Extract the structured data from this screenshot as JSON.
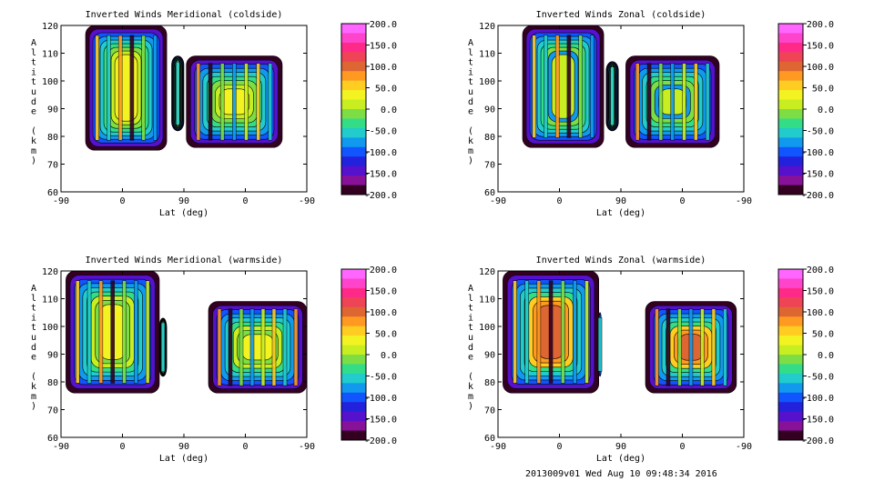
{
  "footer": "2013009v01 Wed Aug 10 09:48:34 2016",
  "colorbar": {
    "labels": [
      "200.0",
      "150.0",
      "100.0",
      "50.0",
      "0.0",
      "-50.0",
      "-100.0",
      "-150.0",
      "-200.0"
    ],
    "colors": [
      "#ff66ff",
      "#ff44cc",
      "#ff2a88",
      "#ee4455",
      "#dd6633",
      "#ff9922",
      "#ffcc22",
      "#f3f322",
      "#c8ee22",
      "#7ddd44",
      "#33dd88",
      "#22cccc",
      "#1199ee",
      "#1155ff",
      "#2222dd",
      "#5511cc",
      "#881199",
      "#330022"
    ]
  },
  "chart_data": [
    {
      "type": "heatmap",
      "title": "Inverted Winds Meridional (coldside)",
      "xlabel": "Lat (deg)",
      "ylabel": "Altitude (km)",
      "xticklabels": [
        "-90",
        "0",
        "90",
        "0",
        "-90"
      ],
      "yticklabels": [
        "60",
        "70",
        "80",
        "90",
        "100",
        "110",
        "120"
      ],
      "ylim": [
        60,
        120
      ],
      "value_range": [
        -200,
        200
      ]
    },
    {
      "type": "heatmap",
      "title": "Inverted Winds Zonal (coldside)",
      "xlabel": "Lat (deg)",
      "ylabel": "Altitude (km)",
      "xticklabels": [
        "-90",
        "0",
        "90",
        "0",
        "-90"
      ],
      "yticklabels": [
        "60",
        "70",
        "80",
        "90",
        "100",
        "110",
        "120"
      ],
      "ylim": [
        60,
        120
      ],
      "value_range": [
        -200,
        200
      ]
    },
    {
      "type": "heatmap",
      "title": "Inverted Winds Meridional (warmside)",
      "xlabel": "Lat (deg)",
      "ylabel": "Altitude (km)",
      "xticklabels": [
        "-90",
        "0",
        "90",
        "0",
        "-90"
      ],
      "yticklabels": [
        "60",
        "70",
        "80",
        "90",
        "100",
        "110",
        "120"
      ],
      "ylim": [
        60,
        120
      ],
      "value_range": [
        -200,
        200
      ]
    },
    {
      "type": "heatmap",
      "title": "Inverted Winds Zonal (warmside)",
      "xlabel": "Lat (deg)",
      "ylabel": "Altitude (km)",
      "xticklabels": [
        "-90",
        "0",
        "90",
        "0",
        "-90"
      ],
      "yticklabels": [
        "60",
        "70",
        "80",
        "90",
        "100",
        "110",
        "120"
      ],
      "ylim": [
        60,
        120
      ],
      "value_range": [
        -200,
        200
      ]
    }
  ]
}
